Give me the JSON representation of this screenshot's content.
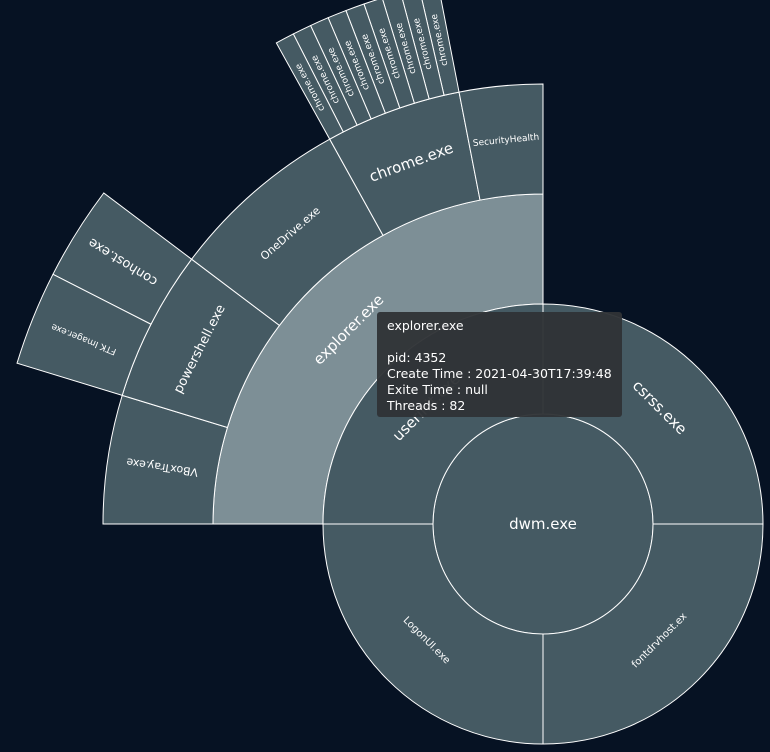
{
  "colors": {
    "background": "#061223",
    "segment": "#455a63",
    "highlight": "#7d8f96",
    "stroke": "#ffffff",
    "tooltip_bg": "#303336"
  },
  "chart_data": [
    {
      "type": "sunburst",
      "root": "explorer.exe",
      "highlighted": "explorer.exe",
      "rings": [
        {
          "level": 1,
          "segments": [
            {
              "name": "explorer.exe",
              "value": 1
            }
          ]
        },
        {
          "level": 2,
          "segments": [
            {
              "name": "VBoxTray.exe"
            },
            {
              "name": "powershell.exe"
            },
            {
              "name": "OneDrive.exe"
            },
            {
              "name": "chrome.exe"
            },
            {
              "name": "SecurityHealth"
            }
          ]
        },
        {
          "level": 3,
          "segments": [
            {
              "name": "conhost.exe",
              "parent": "powershell.exe"
            },
            {
              "name": "FTK Imager.exe",
              "parent": "powershell.exe"
            },
            {
              "name": "chrome.exe",
              "parent": "chrome.exe"
            },
            {
              "name": "chrome.exe",
              "parent": "chrome.exe"
            },
            {
              "name": "chrome.exe",
              "parent": "chrome.exe"
            },
            {
              "name": "chrome.exe",
              "parent": "chrome.exe"
            },
            {
              "name": "chrome.exe",
              "parent": "chrome.exe"
            },
            {
              "name": "chrome.exe",
              "parent": "chrome.exe"
            },
            {
              "name": "chrome.exe",
              "parent": "chrome.exe"
            },
            {
              "name": "chrome.exe",
              "parent": "chrome.exe"
            },
            {
              "name": "chrome.exe",
              "parent": "chrome.exe"
            }
          ]
        }
      ]
    },
    {
      "type": "sunburst",
      "root": "dwm.exe",
      "rings": [
        {
          "level": 1,
          "segments": [
            {
              "name": "dwm.exe"
            }
          ]
        },
        {
          "level": 2,
          "segments": [
            {
              "name": "csrss.exe"
            },
            {
              "name": "fontdrvhost.ex"
            },
            {
              "name": "LogonUI.exe"
            },
            {
              "name": "userinit.exe"
            }
          ]
        }
      ]
    }
  ],
  "tooltip": {
    "title": "explorer.exe",
    "pid": "pid: 4352",
    "create_time": "Create Time : 2021-04-30T17:39:48",
    "exit_time": "Exite Time : null",
    "threads": "Threads : 82"
  }
}
